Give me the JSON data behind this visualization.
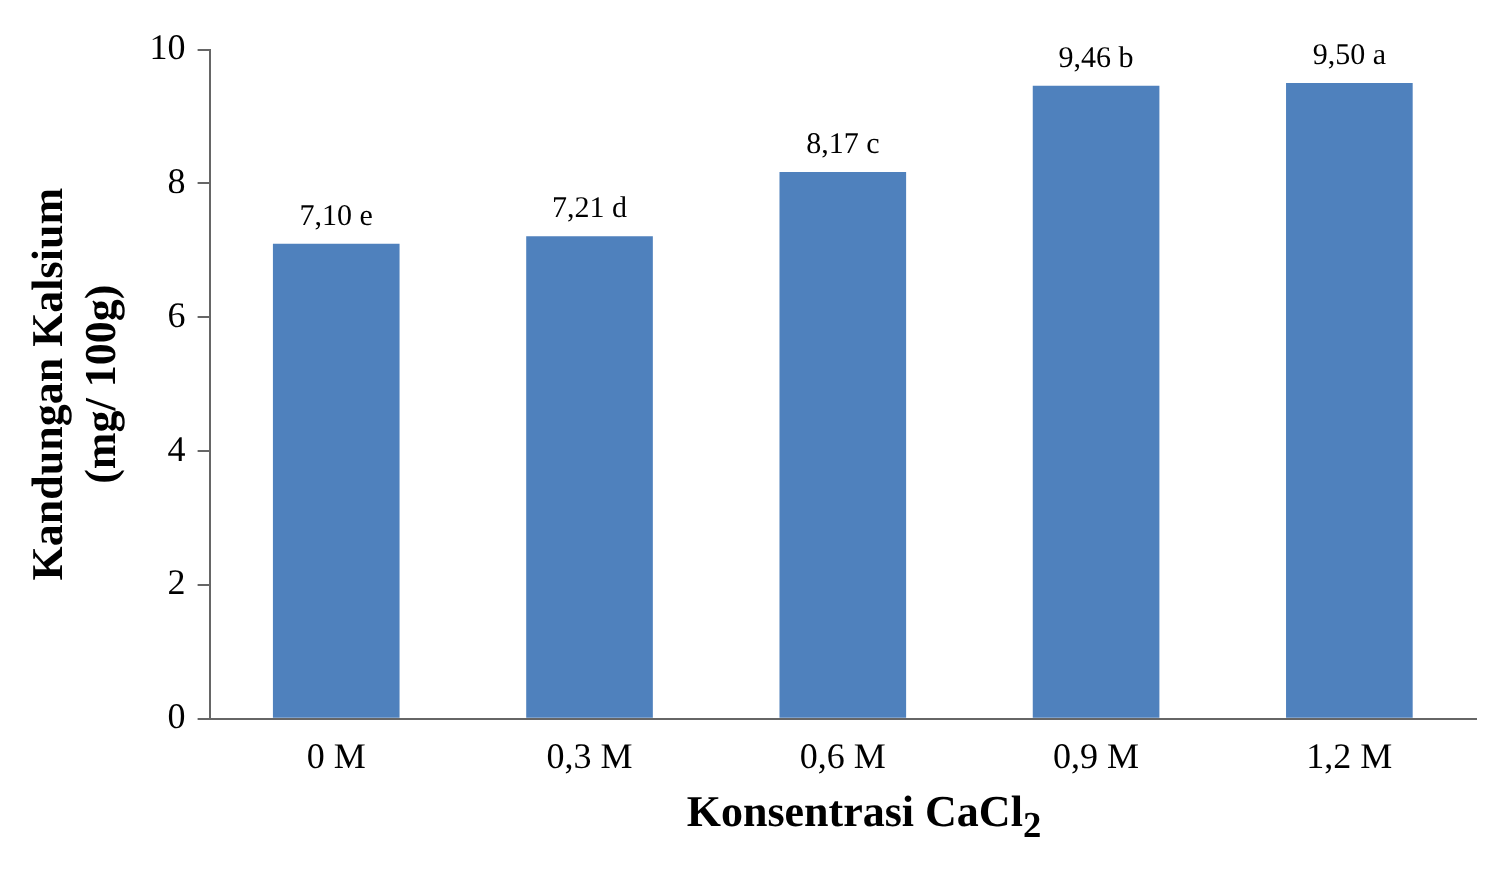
{
  "chart_data": {
    "type": "bar",
    "xlabel": "Konsentrasi CaCl$_{2}$",
    "ylabel": "Kandungan Kalsium\n(mg/ 100g)",
    "categories": [
      "0 M",
      "0,3 M",
      "0,6 M",
      "0,9 M",
      "1,2 M"
    ],
    "values": [
      7.1,
      7.21,
      8.17,
      9.46,
      9.5
    ],
    "value_labels": [
      "7,10 e",
      "7,21 d",
      "8,17 c",
      "9,46 b",
      "9,50 a"
    ],
    "color": "#4f81bd",
    "ylim": [
      0,
      10
    ],
    "yticks": [
      0,
      2,
      4,
      6,
      8,
      10
    ],
    "grid": false,
    "legend": false
  }
}
